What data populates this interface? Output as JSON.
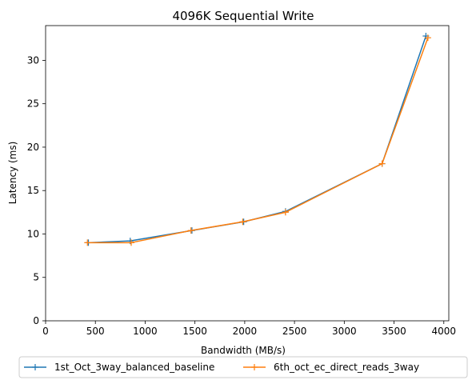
{
  "chart_data": {
    "type": "line",
    "title": "4096K  Sequential Write",
    "xlabel": "Bandwidth (MB/s)",
    "ylabel": "Latency (ms)",
    "xlim": [
      0,
      4050
    ],
    "ylim": [
      0,
      34
    ],
    "xticks": [
      0,
      500,
      1000,
      1500,
      2000,
      2500,
      3000,
      3500,
      4000
    ],
    "yticks": [
      0,
      5,
      10,
      15,
      20,
      25,
      30
    ],
    "grid": false,
    "legend_position": "bottom-center",
    "marker": "plus",
    "series": [
      {
        "name": "1st_Oct_3way_balanced_baseline",
        "color": "#1f77b4",
        "points": [
          {
            "x": 430,
            "y": 9.0
          },
          {
            "x": 850,
            "y": 9.2
          },
          {
            "x": 1470,
            "y": 10.4
          },
          {
            "x": 1990,
            "y": 11.4
          },
          {
            "x": 2410,
            "y": 12.6
          },
          {
            "x": 3380,
            "y": 18.1
          },
          {
            "x": 3820,
            "y": 32.8
          }
        ]
      },
      {
        "name": "6th_oct_ec_direct_reads_3way",
        "color": "#ff7f0e",
        "points": [
          {
            "x": 420,
            "y": 9.0
          },
          {
            "x": 860,
            "y": 9.0
          },
          {
            "x": 1460,
            "y": 10.4
          },
          {
            "x": 1980,
            "y": 11.4
          },
          {
            "x": 2410,
            "y": 12.5
          },
          {
            "x": 3380,
            "y": 18.1
          },
          {
            "x": 3840,
            "y": 32.6
          }
        ]
      }
    ]
  }
}
